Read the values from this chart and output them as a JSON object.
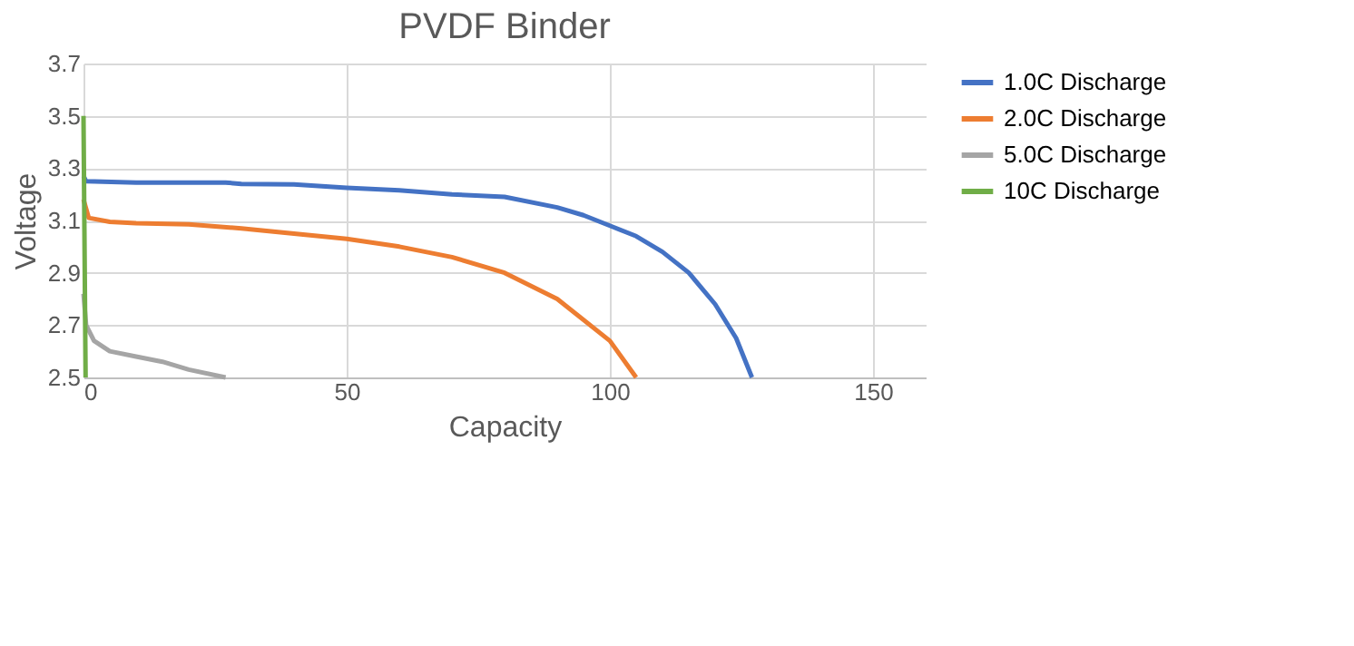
{
  "chart_data": {
    "type": "line",
    "title": "PVDF Binder",
    "xlabel": "Capacity",
    "ylabel": "Voltage",
    "xlim": [
      0,
      160
    ],
    "xticks": [
      0,
      50,
      100,
      150
    ],
    "ylim": [
      2.5,
      3.7
    ],
    "yticks": [
      2.5,
      2.7,
      2.9,
      3.1,
      3.3,
      3.5,
      3.7
    ],
    "grid": true,
    "legend": "right",
    "marker": "none",
    "line_style": "solid",
    "series": [
      {
        "name": "1.0C Discharge",
        "color": "#4472c4",
        "x": [
          0,
          0.5,
          10,
          20,
          27,
          30,
          40,
          50,
          60,
          70,
          80,
          90,
          95,
          100,
          105,
          110,
          115,
          120,
          124,
          127
        ],
        "values": [
          3.27,
          3.25,
          3.245,
          3.245,
          3.245,
          3.24,
          3.238,
          3.225,
          3.215,
          3.2,
          3.19,
          3.15,
          3.12,
          3.08,
          3.04,
          2.98,
          2.9,
          2.78,
          2.65,
          2.5
        ]
      },
      {
        "name": "2.0C Discharge",
        "color": "#ed7d31",
        "x": [
          0,
          1,
          5,
          10,
          20,
          30,
          40,
          50,
          60,
          70,
          80,
          90,
          100,
          105
        ],
        "values": [
          3.18,
          3.11,
          3.095,
          3.09,
          3.085,
          3.07,
          3.05,
          3.03,
          3.0,
          2.96,
          2.9,
          2.8,
          2.64,
          2.5
        ]
      },
      {
        "name": "5.0C Discharge",
        "color": "#a5a5a5",
        "x": [
          0,
          0.5,
          2,
          5,
          10,
          15,
          20,
          27
        ],
        "values": [
          2.82,
          2.7,
          2.64,
          2.6,
          2.58,
          2.56,
          2.53,
          2.5
        ]
      },
      {
        "name": "10C Discharge",
        "color": "#70ad47",
        "x": [
          0,
          0.2,
          0.4
        ],
        "values": [
          3.5,
          3.0,
          2.5
        ]
      }
    ]
  }
}
